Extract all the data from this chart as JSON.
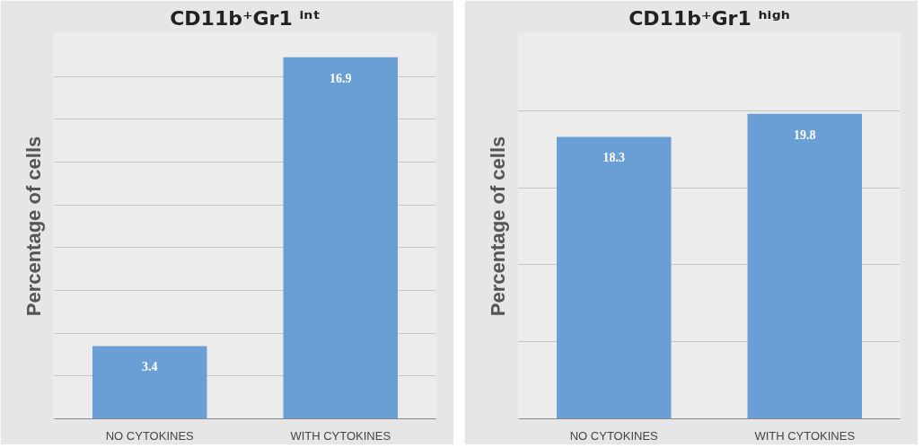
{
  "chart_data": [
    {
      "type": "bar",
      "title": "CD11b⁺Gr1 ⁱⁿᵗ",
      "ylabel": "Percentage of cells",
      "categories": [
        "NO CYTOKINES",
        "WITH CYTOKINES"
      ],
      "values": [
        3.4,
        16.9
      ],
      "color": "#6a9fd6",
      "data_labels": true,
      "ylim": [
        0,
        18
      ],
      "yticks": [
        {
          "value": 0,
          "label": null
        },
        {
          "value": 2,
          "label": null
        },
        {
          "value": 4,
          "label": null
        },
        {
          "value": 6,
          "label": null
        },
        {
          "value": 8,
          "label": null
        },
        {
          "value": 10,
          "label": null
        },
        {
          "value": 12,
          "label": null
        },
        {
          "value": 14,
          "label": null
        },
        {
          "value": 16,
          "label": null
        },
        {
          "value": 18,
          "label": null
        }
      ],
      "grid": "y",
      "tick_labels": "x"
    },
    {
      "type": "bar",
      "title": "CD11b⁺Gr1 ʰⁱᵍʰ",
      "ylabel": "Percentage of cells",
      "categories": [
        "NO CYTOKINES",
        "WITH CYTOKINES"
      ],
      "values": [
        18.3,
        19.8
      ],
      "color": "#6a9fd6",
      "data_labels": true,
      "ylim": [
        0,
        25
      ],
      "yticks": [
        {
          "value": 0,
          "label": null
        },
        {
          "value": 5,
          "label": null
        },
        {
          "value": 10,
          "label": null
        },
        {
          "value": 15,
          "label": null
        },
        {
          "value": 20,
          "label": null
        },
        {
          "value": 25,
          "label": null
        }
      ],
      "grid": "y",
      "tick_labels": "x"
    }
  ]
}
